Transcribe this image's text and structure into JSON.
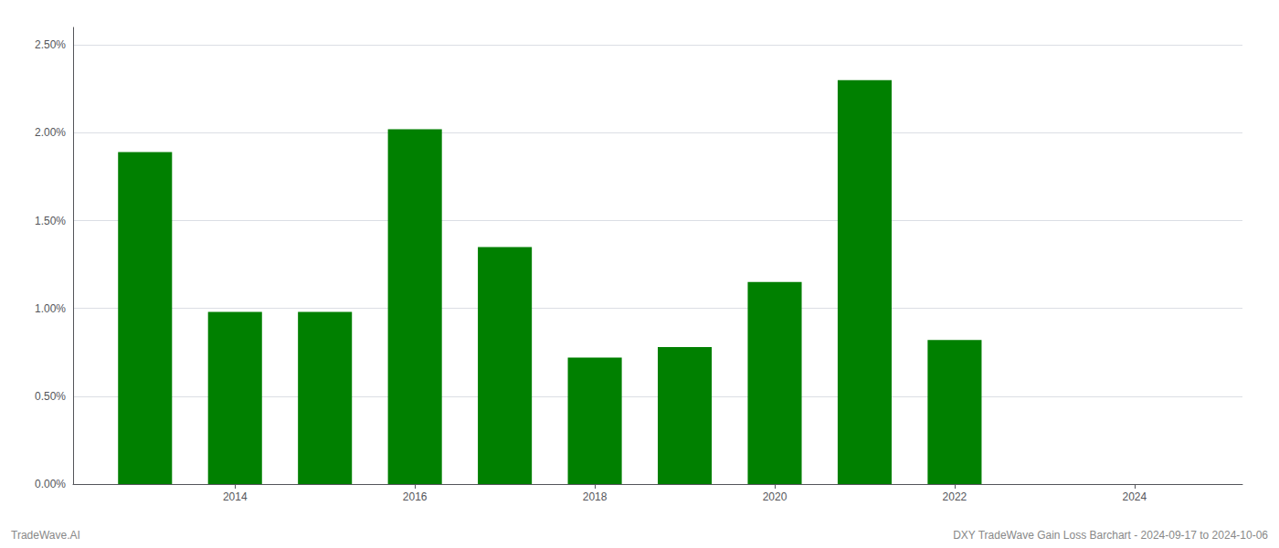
{
  "chart_data": {
    "type": "bar",
    "x": [
      2013,
      2014,
      2015,
      2016,
      2017,
      2018,
      2019,
      2020,
      2021,
      2022,
      2023
    ],
    "values": [
      0.0189,
      0.0098,
      0.0098,
      0.0202,
      0.0135,
      0.0072,
      0.0078,
      0.0115,
      0.023,
      0.0082,
      0.0
    ],
    "color": "#008000",
    "xlim": [
      2012.2,
      2025.2
    ],
    "xticks": [
      2014,
      2016,
      2018,
      2020,
      2022,
      2024
    ],
    "ylim": [
      0.0,
      0.026
    ],
    "yticks": [
      {
        "value": 0.0,
        "label": "0.00%"
      },
      {
        "value": 0.005,
        "label": "0.50%"
      },
      {
        "value": 0.01,
        "label": "1.00%"
      },
      {
        "value": 0.015,
        "label": "1.50%"
      },
      {
        "value": 0.02,
        "label": "2.00%"
      },
      {
        "value": 0.025,
        "label": "2.50%"
      }
    ],
    "grid": true,
    "annotations": [
      "TradeWave.AI",
      "DXY TradeWave Gain Loss Barchart - 2024-09-17 to 2024-10-06"
    ]
  }
}
